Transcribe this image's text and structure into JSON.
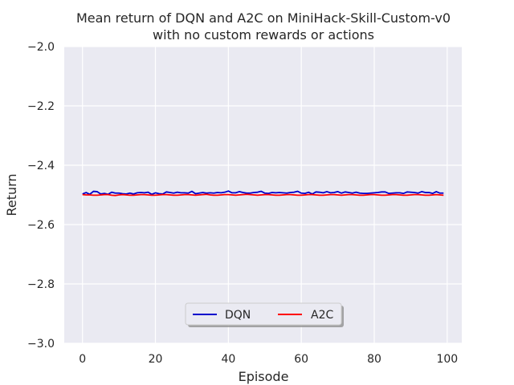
{
  "chart_data": {
    "type": "line",
    "title": "Mean return of DQN and A2C on MiniHack-Skill-Custom-v0",
    "subtitle": "with no custom rewards or actions",
    "xlabel": "Episode",
    "ylabel": "Return",
    "xlim": [
      -5,
      104
    ],
    "ylim": [
      -3.0,
      -2.0
    ],
    "xticks": [
      0,
      20,
      40,
      60,
      80,
      100
    ],
    "yticks": [
      -3.0,
      -2.8,
      -2.6,
      -2.4,
      -2.2,
      -2.0
    ],
    "xtick_labels": [
      "0",
      "20",
      "40",
      "60",
      "80",
      "100"
    ],
    "ytick_labels": [
      "−3.0",
      "−2.8",
      "−2.6",
      "−2.4",
      "−2.2",
      "−2.0"
    ],
    "grid": true,
    "legend_placement": "lower-center",
    "background": "#eaeaf2",
    "series": [
      {
        "name": "DQN",
        "color": "#0000cc",
        "x": [
          0,
          1,
          2,
          3,
          4,
          5,
          6,
          7,
          8,
          9,
          10,
          11,
          12,
          13,
          14,
          15,
          16,
          17,
          18,
          19,
          20,
          21,
          22,
          23,
          24,
          25,
          26,
          27,
          28,
          29,
          30,
          31,
          32,
          33,
          34,
          35,
          36,
          37,
          38,
          39,
          40,
          41,
          42,
          43,
          44,
          45,
          46,
          47,
          48,
          49,
          50,
          51,
          52,
          53,
          54,
          55,
          56,
          57,
          58,
          59,
          60,
          61,
          62,
          63,
          64,
          65,
          66,
          67,
          68,
          69,
          70,
          71,
          72,
          73,
          74,
          75,
          76,
          77,
          78,
          79,
          80,
          81,
          82,
          83,
          84,
          85,
          86,
          87,
          88,
          89,
          90,
          91,
          92,
          93,
          94,
          95,
          96,
          97,
          98,
          99
        ],
        "values": [
          -2.497,
          -2.492,
          -2.498,
          -2.488,
          -2.489,
          -2.497,
          -2.495,
          -2.498,
          -2.491,
          -2.494,
          -2.494,
          -2.496,
          -2.497,
          -2.494,
          -2.497,
          -2.493,
          -2.492,
          -2.493,
          -2.491,
          -2.498,
          -2.493,
          -2.496,
          -2.497,
          -2.49,
          -2.492,
          -2.494,
          -2.491,
          -2.493,
          -2.493,
          -2.494,
          -2.488,
          -2.496,
          -2.494,
          -2.492,
          -2.494,
          -2.493,
          -2.494,
          -2.492,
          -2.493,
          -2.491,
          -2.487,
          -2.493,
          -2.493,
          -2.489,
          -2.492,
          -2.494,
          -2.494,
          -2.492,
          -2.491,
          -2.488,
          -2.494,
          -2.495,
          -2.492,
          -2.493,
          -2.492,
          -2.493,
          -2.494,
          -2.492,
          -2.491,
          -2.488,
          -2.494,
          -2.495,
          -2.491,
          -2.497,
          -2.49,
          -2.491,
          -2.493,
          -2.489,
          -2.493,
          -2.492,
          -2.489,
          -2.494,
          -2.49,
          -2.492,
          -2.494,
          -2.491,
          -2.494,
          -2.495,
          -2.495,
          -2.494,
          -2.493,
          -2.492,
          -2.49,
          -2.49,
          -2.495,
          -2.494,
          -2.493,
          -2.493,
          -2.495,
          -2.49,
          -2.491,
          -2.492,
          -2.494,
          -2.489,
          -2.492,
          -2.492,
          -2.495,
          -2.489,
          -2.494,
          -2.494
        ]
      },
      {
        "name": "A2C",
        "color": "#ff0000",
        "x": [
          0,
          1,
          2,
          3,
          4,
          5,
          6,
          7,
          8,
          9,
          10,
          11,
          12,
          13,
          14,
          15,
          16,
          17,
          18,
          19,
          20,
          21,
          22,
          23,
          24,
          25,
          26,
          27,
          28,
          29,
          30,
          31,
          32,
          33,
          34,
          35,
          36,
          37,
          38,
          39,
          40,
          41,
          42,
          43,
          44,
          45,
          46,
          47,
          48,
          49,
          50,
          51,
          52,
          53,
          54,
          55,
          56,
          57,
          58,
          59,
          60,
          61,
          62,
          63,
          64,
          65,
          66,
          67,
          68,
          69,
          70,
          71,
          72,
          73,
          74,
          75,
          76,
          77,
          78,
          79,
          80,
          81,
          82,
          83,
          84,
          85,
          86,
          87,
          88,
          89,
          90,
          91,
          92,
          93,
          94,
          95,
          96,
          97,
          98,
          99
        ],
        "values": [
          -2.499,
          -2.5,
          -2.5,
          -2.501,
          -2.501,
          -2.5,
          -2.499,
          -2.499,
          -2.501,
          -2.502,
          -2.5,
          -2.499,
          -2.5,
          -2.501,
          -2.501,
          -2.5,
          -2.499,
          -2.499,
          -2.5,
          -2.501,
          -2.501,
          -2.5,
          -2.499,
          -2.499,
          -2.5,
          -2.501,
          -2.501,
          -2.5,
          -2.499,
          -2.499,
          -2.5,
          -2.501,
          -2.5,
          -2.499,
          -2.498,
          -2.5,
          -2.501,
          -2.501,
          -2.5,
          -2.499,
          -2.499,
          -2.5,
          -2.501,
          -2.5,
          -2.499,
          -2.498,
          -2.499,
          -2.5,
          -2.501,
          -2.5,
          -2.499,
          -2.499,
          -2.5,
          -2.501,
          -2.501,
          -2.5,
          -2.499,
          -2.499,
          -2.5,
          -2.501,
          -2.501,
          -2.5,
          -2.499,
          -2.499,
          -2.5,
          -2.501,
          -2.501,
          -2.5,
          -2.499,
          -2.499,
          -2.5,
          -2.501,
          -2.5,
          -2.499,
          -2.499,
          -2.5,
          -2.501,
          -2.501,
          -2.5,
          -2.499,
          -2.499,
          -2.5,
          -2.501,
          -2.501,
          -2.5,
          -2.499,
          -2.499,
          -2.5,
          -2.501,
          -2.501,
          -2.5,
          -2.499,
          -2.499,
          -2.5,
          -2.501,
          -2.501,
          -2.5,
          -2.499,
          -2.5,
          -2.501
        ]
      }
    ]
  }
}
